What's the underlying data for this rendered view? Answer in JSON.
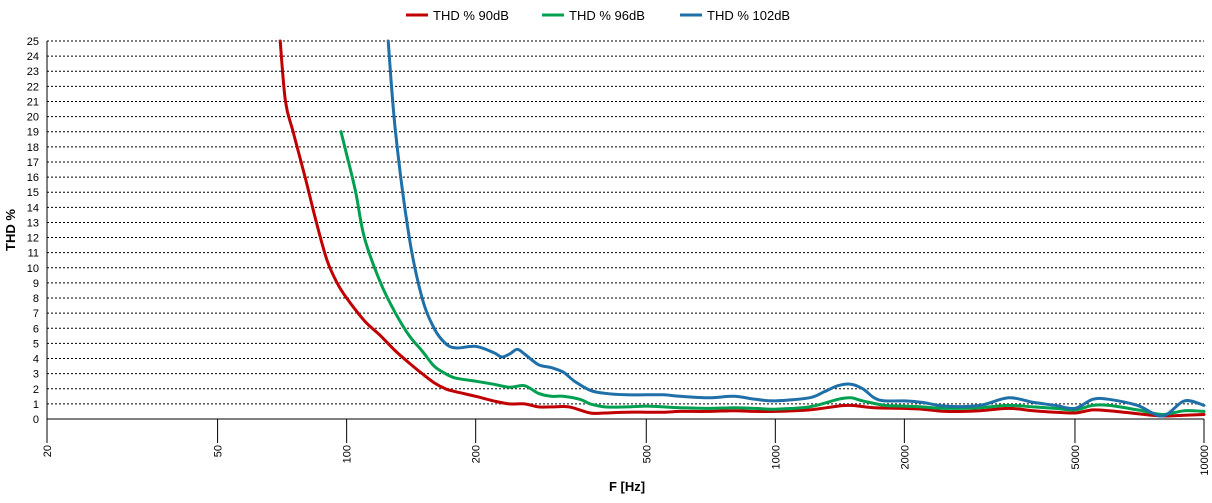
{
  "chart_data": {
    "type": "line",
    "xlabel": "F [Hz]",
    "ylabel": "THD %",
    "x_scale": "log",
    "xlim": [
      20,
      10000
    ],
    "ylim": [
      0,
      25
    ],
    "x_ticks": [
      20,
      50,
      100,
      200,
      500,
      1000,
      2000,
      5000,
      10000
    ],
    "x_tick_labels": [
      "20",
      "50",
      "100",
      "200",
      "500",
      "1000",
      "2000",
      "5000",
      "10000"
    ],
    "y_ticks": [
      0,
      1,
      2,
      3,
      4,
      5,
      6,
      7,
      8,
      9,
      10,
      11,
      12,
      13,
      14,
      15,
      16,
      17,
      18,
      19,
      20,
      21,
      22,
      23,
      24,
      25
    ],
    "y_tick_labels": [
      "0",
      "1",
      "2",
      "3",
      "4",
      "5",
      "6",
      "7",
      "8",
      "9",
      "10",
      "11",
      "12",
      "13",
      "14",
      "15",
      "16",
      "17",
      "18",
      "19",
      "20",
      "21",
      "22",
      "23",
      "24",
      "25"
    ],
    "grid": "horizontal dashed",
    "legend_position": "top",
    "series": [
      {
        "name": "THD % 90dB",
        "color": "#c00000",
        "points": [
          [
            70,
            25
          ],
          [
            72,
            21
          ],
          [
            75,
            19
          ],
          [
            80,
            16
          ],
          [
            85,
            13
          ],
          [
            90,
            10.5
          ],
          [
            95,
            9
          ],
          [
            100,
            8
          ],
          [
            110,
            6.5
          ],
          [
            120,
            5.5
          ],
          [
            130,
            4.5
          ],
          [
            140,
            3.7
          ],
          [
            150,
            3
          ],
          [
            160,
            2.4
          ],
          [
            170,
            2
          ],
          [
            180,
            1.8
          ],
          [
            200,
            1.5
          ],
          [
            220,
            1.2
          ],
          [
            240,
            1
          ],
          [
            260,
            1
          ],
          [
            280,
            0.8
          ],
          [
            300,
            0.8
          ],
          [
            330,
            0.8
          ],
          [
            370,
            0.4
          ],
          [
            400,
            0.4
          ],
          [
            450,
            0.45
          ],
          [
            500,
            0.45
          ],
          [
            550,
            0.45
          ],
          [
            600,
            0.5
          ],
          [
            700,
            0.5
          ],
          [
            800,
            0.55
          ],
          [
            900,
            0.5
          ],
          [
            1000,
            0.5
          ],
          [
            1200,
            0.6
          ],
          [
            1400,
            0.85
          ],
          [
            1500,
            0.9
          ],
          [
            1700,
            0.75
          ],
          [
            2000,
            0.7
          ],
          [
            2200,
            0.65
          ],
          [
            2500,
            0.5
          ],
          [
            3000,
            0.55
          ],
          [
            3500,
            0.7
          ],
          [
            4000,
            0.55
          ],
          [
            4500,
            0.45
          ],
          [
            5000,
            0.4
          ],
          [
            5500,
            0.6
          ],
          [
            6000,
            0.55
          ],
          [
            7000,
            0.35
          ],
          [
            8000,
            0.2
          ],
          [
            9000,
            0.25
          ],
          [
            10000,
            0.3
          ]
        ]
      },
      {
        "name": "THD % 96dB",
        "color": "#00a050",
        "points": [
          [
            97,
            19
          ],
          [
            100,
            17.5
          ],
          [
            105,
            15
          ],
          [
            110,
            12
          ],
          [
            120,
            9
          ],
          [
            130,
            7
          ],
          [
            140,
            5.5
          ],
          [
            150,
            4.5
          ],
          [
            160,
            3.5
          ],
          [
            170,
            3
          ],
          [
            180,
            2.7
          ],
          [
            200,
            2.5
          ],
          [
            220,
            2.3
          ],
          [
            240,
            2.1
          ],
          [
            260,
            2.2
          ],
          [
            280,
            1.7
          ],
          [
            300,
            1.5
          ],
          [
            320,
            1.5
          ],
          [
            350,
            1.3
          ],
          [
            370,
            1
          ],
          [
            400,
            0.8
          ],
          [
            450,
            0.8
          ],
          [
            500,
            0.85
          ],
          [
            550,
            0.8
          ],
          [
            600,
            0.75
          ],
          [
            700,
            0.7
          ],
          [
            800,
            0.75
          ],
          [
            900,
            0.7
          ],
          [
            1000,
            0.65
          ],
          [
            1200,
            0.8
          ],
          [
            1400,
            1.3
          ],
          [
            1500,
            1.4
          ],
          [
            1600,
            1.2
          ],
          [
            1800,
            0.9
          ],
          [
            2000,
            0.85
          ],
          [
            2200,
            0.8
          ],
          [
            2500,
            0.7
          ],
          [
            3000,
            0.75
          ],
          [
            3500,
            0.9
          ],
          [
            4000,
            0.8
          ],
          [
            4500,
            0.7
          ],
          [
            5000,
            0.6
          ],
          [
            5500,
            0.9
          ],
          [
            6000,
            0.9
          ],
          [
            7000,
            0.6
          ],
          [
            8000,
            0.3
          ],
          [
            9000,
            0.55
          ],
          [
            10000,
            0.5
          ]
        ]
      },
      {
        "name": "THD % 102dB",
        "color": "#1f6fa8",
        "points": [
          [
            125,
            25
          ],
          [
            130,
            19
          ],
          [
            140,
            12
          ],
          [
            150,
            8
          ],
          [
            160,
            6
          ],
          [
            170,
            5
          ],
          [
            180,
            4.7
          ],
          [
            200,
            4.8
          ],
          [
            220,
            4.4
          ],
          [
            230,
            4.1
          ],
          [
            240,
            4.3
          ],
          [
            250,
            4.6
          ],
          [
            260,
            4.3
          ],
          [
            280,
            3.6
          ],
          [
            300,
            3.4
          ],
          [
            320,
            3.1
          ],
          [
            340,
            2.5
          ],
          [
            370,
            1.9
          ],
          [
            400,
            1.7
          ],
          [
            450,
            1.6
          ],
          [
            500,
            1.6
          ],
          [
            550,
            1.6
          ],
          [
            600,
            1.5
          ],
          [
            700,
            1.4
          ],
          [
            800,
            1.5
          ],
          [
            900,
            1.3
          ],
          [
            1000,
            1.2
          ],
          [
            1200,
            1.4
          ],
          [
            1300,
            1.8
          ],
          [
            1400,
            2.2
          ],
          [
            1500,
            2.3
          ],
          [
            1600,
            2
          ],
          [
            1700,
            1.4
          ],
          [
            1800,
            1.2
          ],
          [
            2000,
            1.2
          ],
          [
            2200,
            1.1
          ],
          [
            2500,
            0.85
          ],
          [
            3000,
            0.9
          ],
          [
            3500,
            1.4
          ],
          [
            4000,
            1.1
          ],
          [
            4500,
            0.9
          ],
          [
            5000,
            0.7
          ],
          [
            5500,
            1.3
          ],
          [
            6000,
            1.3
          ],
          [
            7000,
            0.9
          ],
          [
            8000,
            0.2
          ],
          [
            9000,
            1.2
          ],
          [
            10000,
            0.9
          ]
        ]
      }
    ]
  }
}
